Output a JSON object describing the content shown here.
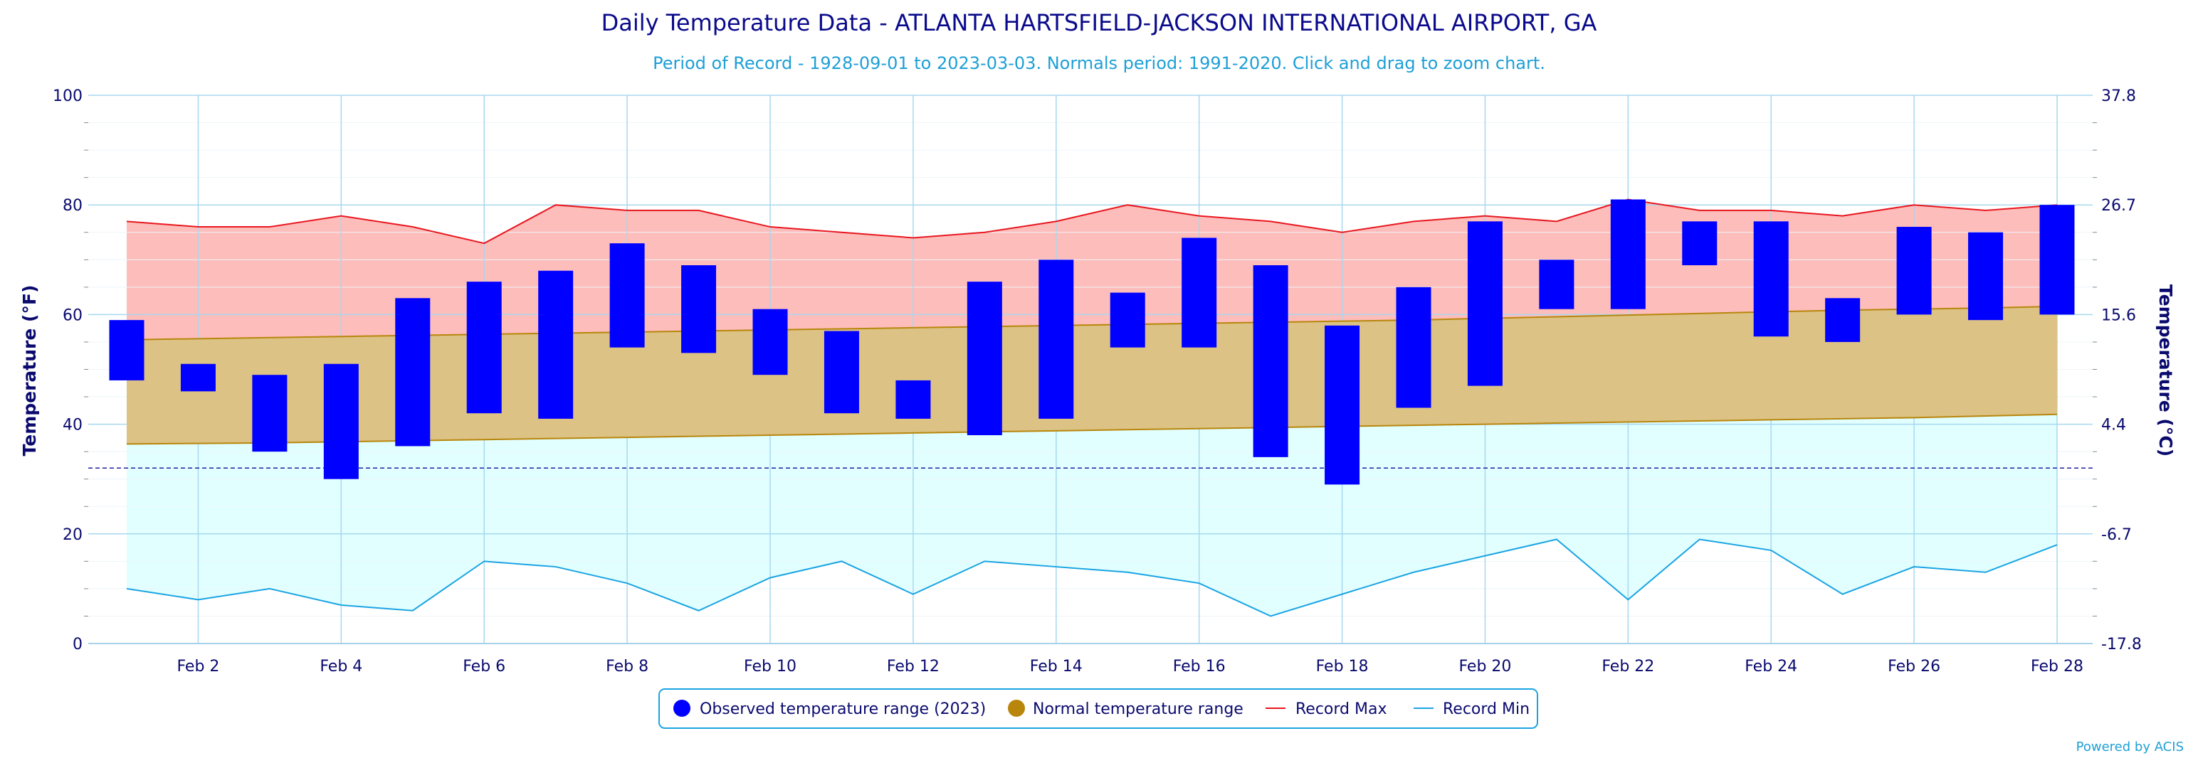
{
  "credits": "Powered by ACIS",
  "colors": {
    "observed": "#0000ff",
    "normal": "#b8860b",
    "normal_fill": "#dcc285",
    "record_max": "#e8171f",
    "record_max_fill": "#fdbdbb",
    "record_min": "#1aa4e3",
    "record_min_fill": "#e1ffff",
    "freezing_line": "#2020a0",
    "grid": "#a8d8ef"
  },
  "chart_data": {
    "type": "bar",
    "title": "Daily Temperature Data - ATLANTA HARTSFIELD-JACKSON INTERNATIONAL AIRPORT, GA",
    "subtitle": "Period of Record - 1928-09-01 to 2023-03-03. Normals period: 1991-2020. Click and drag to zoom chart.",
    "ylabel": "Temperature (°F)",
    "ylabel_right": "Temperature (°C)",
    "ylim": [
      0,
      100
    ],
    "y_ticks": [
      "0",
      "20",
      "40",
      "60",
      "80",
      "100"
    ],
    "y_ticks_right": [
      "-17.8",
      "-6.7",
      "4.4",
      "15.6",
      "26.7",
      "37.8"
    ],
    "x_ticks": [
      "Feb 2",
      "Feb 4",
      "Feb 6",
      "Feb 8",
      "Feb 10",
      "Feb 12",
      "Feb 14",
      "Feb 16",
      "Feb 18",
      "Feb 20",
      "Feb 22",
      "Feb 24",
      "Feb 26",
      "Feb 28"
    ],
    "days": [
      1,
      2,
      3,
      4,
      5,
      6,
      7,
      8,
      9,
      10,
      11,
      12,
      13,
      14,
      15,
      16,
      17,
      18,
      19,
      20,
      21,
      22,
      23,
      24,
      25,
      26,
      27,
      28
    ],
    "freezing_line": 32,
    "grid": true,
    "legend_position": "bottom-center",
    "series": [
      {
        "name": "Observed temperature range (2023)",
        "low": [
          48,
          46,
          35,
          30,
          36,
          42,
          41,
          54,
          53,
          49,
          42,
          41,
          38,
          41,
          54,
          54,
          34,
          29,
          43,
          47,
          61,
          61,
          69,
          56,
          55,
          60,
          59,
          60
        ],
        "high": [
          59,
          51,
          49,
          51,
          63,
          66,
          68,
          73,
          69,
          61,
          57,
          48,
          66,
          70,
          64,
          74,
          69,
          58,
          65,
          77,
          70,
          81,
          77,
          77,
          63,
          76,
          75,
          80
        ]
      },
      {
        "name": "Normal temperature range",
        "low": [
          36.4,
          36.5,
          36.6,
          36.8,
          37.0,
          37.2,
          37.4,
          37.6,
          37.8,
          38.0,
          38.2,
          38.4,
          38.6,
          38.8,
          39.0,
          39.2,
          39.4,
          39.6,
          39.8,
          40.0,
          40.2,
          40.4,
          40.6,
          40.8,
          41.0,
          41.2,
          41.5,
          41.8
        ],
        "high": [
          55.4,
          55.6,
          55.8,
          56.0,
          56.2,
          56.4,
          56.6,
          56.8,
          57.0,
          57.2,
          57.4,
          57.6,
          57.8,
          58.0,
          58.2,
          58.4,
          58.6,
          58.8,
          59.0,
          59.3,
          59.6,
          59.9,
          60.2,
          60.5,
          60.8,
          61.0,
          61.2,
          61.5
        ]
      },
      {
        "name": "Record Max",
        "values": [
          77,
          76,
          76,
          78,
          76,
          73,
          80,
          79,
          79,
          76,
          75,
          74,
          75,
          77,
          80,
          78,
          77,
          75,
          77,
          78,
          77,
          81,
          79,
          79,
          78,
          80,
          79,
          80
        ]
      },
      {
        "name": "Record Min",
        "values": [
          10,
          8,
          10,
          7,
          6,
          15,
          14,
          11,
          6,
          12,
          15,
          9,
          15,
          14,
          13,
          11,
          5,
          9,
          13,
          16,
          19,
          8,
          19,
          17,
          9,
          14,
          13,
          18
        ]
      }
    ]
  }
}
